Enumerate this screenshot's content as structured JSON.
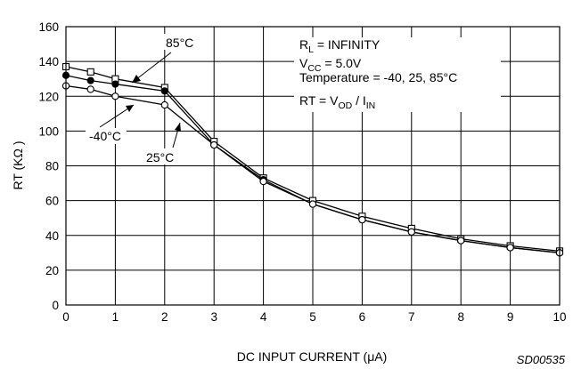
{
  "chart_data": {
    "type": "line",
    "xlabel": "DC INPUT CURRENT (μA)",
    "ylabel": "RT (KΩ )",
    "xlim": [
      0,
      10
    ],
    "ylim": [
      0,
      160
    ],
    "x_ticks": [
      "0",
      "1",
      "2",
      "3",
      "4",
      "5",
      "6",
      "7",
      "8",
      "9",
      "10"
    ],
    "y_ticks": [
      "0",
      "20",
      "40",
      "60",
      "80",
      "100",
      "120",
      "140",
      "160"
    ],
    "grid": true,
    "series": [
      {
        "name": "85°C",
        "marker": "open-square",
        "x": [
          0,
          0.5,
          1,
          2,
          3,
          4,
          5,
          6,
          7,
          8,
          9,
          10
        ],
        "y": [
          137,
          134,
          130,
          125,
          94,
          73,
          60,
          51,
          44,
          38,
          34,
          31
        ]
      },
      {
        "name": "25°C",
        "marker": "filled-circle",
        "x": [
          0,
          0.5,
          1,
          2,
          3,
          4,
          5,
          6,
          7,
          8,
          9,
          10
        ],
        "y": [
          132,
          129,
          127,
          123,
          92,
          72,
          58,
          49,
          42,
          37,
          33,
          30
        ]
      },
      {
        "name": "-40°C",
        "marker": "open-circle",
        "x": [
          0,
          0.5,
          1,
          2,
          3,
          4,
          5,
          6,
          7,
          8,
          9,
          10
        ],
        "y": [
          126,
          124,
          120,
          115,
          92,
          71,
          58,
          49,
          42,
          37,
          33,
          30
        ]
      }
    ],
    "annotation": {
      "rl_main": "R",
      "rl_sub": "L",
      "rl_rest": " = INFINITY",
      "vcc_main": "V",
      "vcc_sub": "CC",
      "vcc_rest": " = 5.0V",
      "temperature": "Temperature = -40, 25, 85°C",
      "rt_prefix": "RT = V",
      "rt_sub1": "OD",
      "rt_mid": " / I",
      "rt_sub2": "IN"
    },
    "code": "SD00535"
  }
}
